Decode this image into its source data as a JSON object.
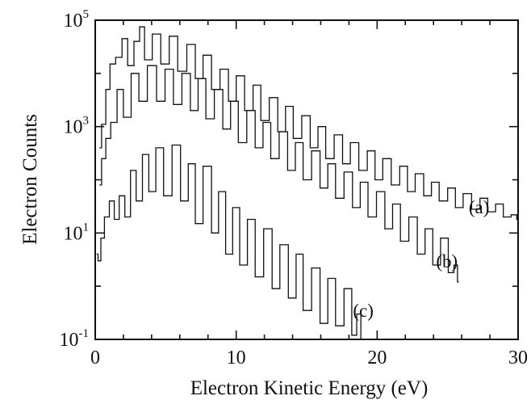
{
  "chart_data": {
    "type": "line",
    "title": "",
    "xlabel": "Electron Kinetic Energy (eV)",
    "ylabel": "Electron Counts",
    "xlim": [
      0,
      30
    ],
    "ylim": [
      0.1,
      100000
    ],
    "yscale": "log",
    "grid": false,
    "x_ticks": [
      {
        "value": 0,
        "label": "0"
      },
      {
        "value": 10,
        "label": "10"
      },
      {
        "value": 20,
        "label": "20"
      },
      {
        "value": 30,
        "label": "30"
      }
    ],
    "y_ticks": [
      {
        "value": 100000,
        "base": "10",
        "exp": "5"
      },
      {
        "value": 1000,
        "base": "10",
        "exp": "3"
      },
      {
        "value": 10,
        "base": "10",
        "exp": "1"
      },
      {
        "value": 0.1,
        "base": "10",
        "exp": "-1"
      }
    ],
    "series": [
      {
        "name": "(a)",
        "color": "#111111",
        "peak_spacing_eV": 1.15,
        "points": [
          [
            0.3,
            400
          ],
          [
            0.6,
            1100
          ],
          [
            0.9,
            5000
          ],
          [
            1.2,
            15000
          ],
          [
            1.7,
            20000
          ],
          [
            2.1,
            45000
          ],
          [
            2.5,
            14000
          ],
          [
            3.0,
            40000
          ],
          [
            3.3,
            75000
          ],
          [
            3.7,
            18000
          ],
          [
            4.4,
            55000
          ],
          [
            4.9,
            15000
          ],
          [
            5.6,
            50000
          ],
          [
            6.1,
            11000
          ],
          [
            6.9,
            35000
          ],
          [
            7.3,
            8000
          ],
          [
            8.0,
            22000
          ],
          [
            8.5,
            5000
          ],
          [
            9.2,
            12000
          ],
          [
            9.7,
            3000
          ],
          [
            10.3,
            9000
          ],
          [
            10.9,
            2000
          ],
          [
            11.5,
            6000
          ],
          [
            12.0,
            1300
          ],
          [
            12.7,
            3500
          ],
          [
            13.2,
            800
          ],
          [
            13.8,
            2400
          ],
          [
            14.3,
            600
          ],
          [
            15.0,
            1600
          ],
          [
            15.5,
            400
          ],
          [
            16.1,
            1000
          ],
          [
            16.6,
            250
          ],
          [
            17.3,
            700
          ],
          [
            17.8,
            200
          ],
          [
            18.4,
            500
          ],
          [
            19.0,
            150
          ],
          [
            19.6,
            350
          ],
          [
            20.1,
            100
          ],
          [
            20.7,
            250
          ],
          [
            21.3,
            80
          ],
          [
            21.9,
            180
          ],
          [
            22.4,
            60
          ],
          [
            23.0,
            130
          ],
          [
            23.6,
            50
          ],
          [
            24.1,
            90
          ],
          [
            24.7,
            40
          ],
          [
            25.3,
            70
          ],
          [
            25.8,
            30
          ],
          [
            26.4,
            55
          ],
          [
            27.0,
            28
          ],
          [
            27.6,
            45
          ],
          [
            28.1,
            25
          ],
          [
            28.7,
            35
          ],
          [
            29.2,
            20
          ],
          [
            29.8,
            22
          ],
          [
            30.0,
            18
          ]
        ]
      },
      {
        "name": "(b)",
        "color": "#111111",
        "peak_spacing_eV": 1.15,
        "points": [
          [
            0.3,
            80
          ],
          [
            0.6,
            250
          ],
          [
            0.9,
            600
          ],
          [
            1.3,
            1200
          ],
          [
            1.8,
            5000
          ],
          [
            2.2,
            1500
          ],
          [
            2.9,
            10000
          ],
          [
            3.3,
            3000
          ],
          [
            4.1,
            14000
          ],
          [
            4.6,
            3000
          ],
          [
            5.3,
            12000
          ],
          [
            5.8,
            2600
          ],
          [
            6.5,
            10000
          ],
          [
            7.0,
            2000
          ],
          [
            7.6,
            8000
          ],
          [
            8.1,
            1400
          ],
          [
            8.8,
            5000
          ],
          [
            9.3,
            900
          ],
          [
            9.9,
            3000
          ],
          [
            10.4,
            500
          ],
          [
            11.1,
            2000
          ],
          [
            11.6,
            400
          ],
          [
            12.2,
            1200
          ],
          [
            12.7,
            250
          ],
          [
            13.4,
            800
          ],
          [
            13.9,
            150
          ],
          [
            14.5,
            500
          ],
          [
            15.0,
            100
          ],
          [
            15.7,
            350
          ],
          [
            16.2,
            70
          ],
          [
            16.8,
            200
          ],
          [
            17.3,
            45
          ],
          [
            18.0,
            140
          ],
          [
            18.5,
            30
          ],
          [
            19.1,
            90
          ],
          [
            19.6,
            20
          ],
          [
            20.3,
            60
          ],
          [
            20.8,
            12
          ],
          [
            21.4,
            35
          ],
          [
            21.9,
            7
          ],
          [
            22.6,
            20
          ],
          [
            23.1,
            4
          ],
          [
            23.7,
            12
          ],
          [
            24.2,
            2.5
          ],
          [
            24.8,
            8
          ],
          [
            25.3,
            1.8
          ],
          [
            25.6,
            2.5
          ],
          [
            25.8,
            1.2
          ]
        ]
      },
      {
        "name": "(c)",
        "color": "#111111",
        "peak_spacing_eV": 1.15,
        "points": [
          [
            0.1,
            4
          ],
          [
            0.3,
            3
          ],
          [
            0.5,
            8
          ],
          [
            0.8,
            20
          ],
          [
            1.2,
            40
          ],
          [
            1.5,
            18
          ],
          [
            1.9,
            50
          ],
          [
            2.3,
            20
          ],
          [
            2.7,
            150
          ],
          [
            3.1,
            40
          ],
          [
            3.6,
            300
          ],
          [
            4.0,
            60
          ],
          [
            4.6,
            400
          ],
          [
            5.1,
            50
          ],
          [
            5.8,
            450
          ],
          [
            6.3,
            40
          ],
          [
            6.9,
            200
          ],
          [
            7.3,
            15
          ],
          [
            8.0,
            180
          ],
          [
            8.5,
            10
          ],
          [
            9.0,
            60
          ],
          [
            9.5,
            4
          ],
          [
            10.0,
            30
          ],
          [
            10.5,
            2.5
          ],
          [
            11.1,
            18
          ],
          [
            11.6,
            1.5
          ],
          [
            12.3,
            12
          ],
          [
            12.8,
            0.9
          ],
          [
            13.4,
            6
          ],
          [
            14.0,
            0.6
          ],
          [
            14.5,
            4
          ],
          [
            15.0,
            0.35
          ],
          [
            15.7,
            2.2
          ],
          [
            16.2,
            0.2
          ],
          [
            16.8,
            1.4
          ],
          [
            17.3,
            0.18
          ],
          [
            18.0,
            0.9
          ],
          [
            18.4,
            0.12
          ],
          [
            18.7,
            0.3
          ],
          [
            19.0,
            0.1
          ]
        ]
      }
    ]
  }
}
